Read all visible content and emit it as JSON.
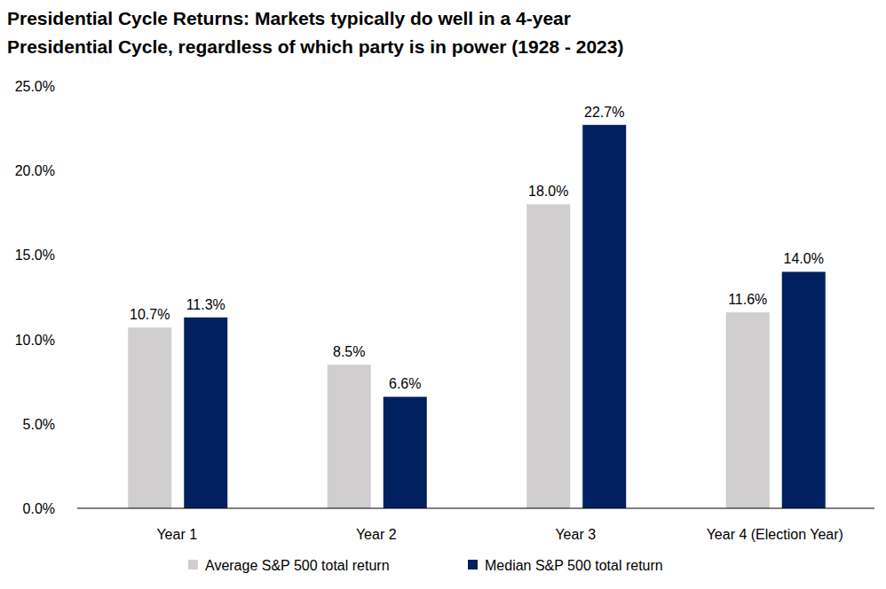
{
  "chart_data": {
    "type": "bar",
    "title": "Presidential Cycle Returns: Markets typically do well in a 4-year\nPresidential Cycle, regardless of which party is in power (1928 - 2023)",
    "categories": [
      "Year 1",
      "Year 2",
      "Year 3",
      "Year 4 (Election Year)"
    ],
    "series": [
      {
        "name": "Average S&P 500 total return",
        "color": "#d0cece",
        "values": [
          10.7,
          8.5,
          18.0,
          11.6
        ],
        "value_labels": [
          "10.7%",
          "8.5%",
          "18.0%",
          "11.6%"
        ]
      },
      {
        "name": "Median S&P 500 total return",
        "color": "#002060",
        "values": [
          11.3,
          6.6,
          22.7,
          14.0
        ],
        "value_labels": [
          "11.3%",
          "6.6%",
          "22.7%",
          "14.0%"
        ]
      }
    ],
    "ylim": [
      0,
      25
    ],
    "yticks": [
      {
        "value": 0,
        "label": "0.0%"
      },
      {
        "value": 5,
        "label": "5.0%"
      },
      {
        "value": 10,
        "label": "10.0%"
      },
      {
        "value": 15,
        "label": "15.0%"
      },
      {
        "value": 20,
        "label": "20.0%"
      },
      {
        "value": 25,
        "label": "25.0%"
      }
    ],
    "grid": false,
    "legend": "bottom",
    "data_labels": true
  }
}
